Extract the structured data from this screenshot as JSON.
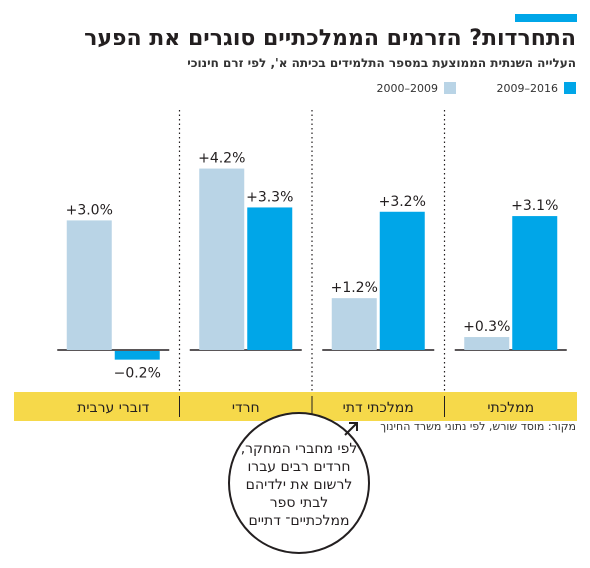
{
  "title": "התחרדות? הזרמים הממלכתיים סוגרים את הפער",
  "subtitle": "העלייה השנתית הממוצעת במספר התלמידים בכיתה א', לפי זרם חינוכי",
  "source": "מקור: מוסד שורש, לפי נתוני משרד החינוך",
  "callout": "לפי מחברי המחקר, חרדים רבים עברו לרשום את ילדיהם לבתי ספר ממלכתיים־ דתיים",
  "colors": {
    "accent": "#00a6e8",
    "light": "#b9d4e6",
    "band": "#f6d94a",
    "axis": "#231f20"
  },
  "chart_data": {
    "type": "bar",
    "title": "התחרדות? הזרמים הממלכתיים סוגרים את הפער",
    "subtitle": "העלייה השנתית הממוצעת במספר התלמידים בכיתה א', לפי זרם חינוכי",
    "categories": [
      "ממלכתי",
      "ממלכתי דתי",
      "חרדי",
      "דוברי ערבית"
    ],
    "series": [
      {
        "name": "2009–2016",
        "color": "#00a6e8",
        "values": [
          3.1,
          3.2,
          3.3,
          -0.2
        ],
        "labels": [
          "+3.1%",
          "+3.2%",
          "+3.3%",
          "−0.2%"
        ]
      },
      {
        "name": "2000–2009",
        "color": "#b9d4e6",
        "values": [
          0.3,
          1.2,
          4.2,
          3.0
        ],
        "labels": [
          "+0.3%",
          "+1.2%",
          "+4.2%",
          "+3.0%"
        ]
      }
    ],
    "category_order": "right-to-left",
    "legend": "top-right",
    "grid": false,
    "xlabel": "",
    "ylabel": "",
    "ylim": [
      -0.3,
      4.3
    ]
  }
}
